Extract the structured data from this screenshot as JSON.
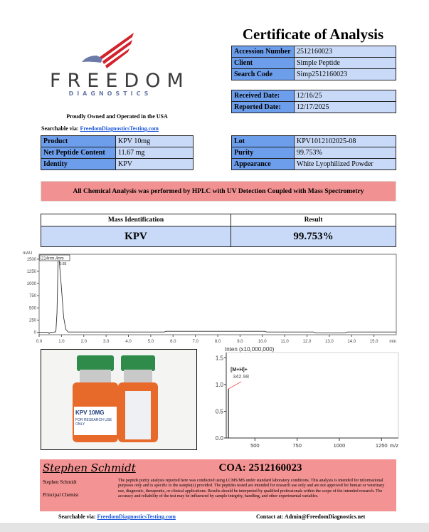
{
  "title": "Certificate of Analysis",
  "logo": {
    "name": "FREEDOM",
    "sub": "DIAGNOSTICS",
    "colors": {
      "red": "#d3222a",
      "blue": "#6b7aa8"
    }
  },
  "tagline": "Proudly Owned and Operated in the USA",
  "searchable": {
    "label": "Searchable via:",
    "link": "FreedomDiagnosticsTesting.com"
  },
  "info": [
    {
      "label": "Accession Number",
      "value": "2512160023"
    },
    {
      "label": "Client",
      "value": "Simple Peptide"
    },
    {
      "label": "Search Code",
      "value": "Simp2512160023"
    }
  ],
  "dates": [
    {
      "label": "Received Date:",
      "value": "12/16/25"
    },
    {
      "label": "Reported Date:",
      "value": "12/17/2025"
    }
  ],
  "product": [
    {
      "label": "Product",
      "value": "KPV 10mg"
    },
    {
      "label": "Net Peptide Content",
      "value": "11.67 mg"
    },
    {
      "label": "Identity",
      "value": "KPV"
    }
  ],
  "lot": [
    {
      "label": "Lot",
      "value": "KPV1012102025-08"
    },
    {
      "label": "Purity",
      "value": "99.753%"
    },
    {
      "label": "Appearance",
      "value": "White Lyophilized Powder"
    }
  ],
  "banner": "All Chemical Analysis was performed by HPLC with UV Detection Coupled with Mass Spectrometry",
  "mass": {
    "headers": [
      "Mass Identification",
      "Result"
    ],
    "identity": "KPV",
    "result": "99.753%"
  },
  "photo": {
    "vial_label": "KPV 10MG",
    "vial_sub": "FOR RESEARCH USE ONLY"
  },
  "chart_data": [
    {
      "type": "line",
      "ylabel": "mAU",
      "xlabel": "min",
      "legend": "214nm,4nm",
      "xlim": [
        0,
        16
      ],
      "ylim": [
        -50,
        1600
      ],
      "xticks": [
        "0.0",
        "1.0",
        "2.0",
        "3.0",
        "4.0",
        "5.0",
        "6.0",
        "7.0",
        "8.0",
        "9.0",
        "10.0",
        "11.0",
        "12.0",
        "13.0",
        "14.0",
        "15.0"
      ],
      "yticks": [
        "0",
        "250",
        "500",
        "750",
        "1000",
        "1250",
        "1500"
      ],
      "x": [
        0,
        0.4,
        0.45,
        0.5,
        0.6,
        0.75,
        0.8,
        0.85,
        0.9,
        1.0,
        1.1,
        1.2,
        1.3,
        5.6,
        5.7,
        10.1,
        10.2,
        12.3,
        12.4,
        13.7,
        13.8,
        16
      ],
      "y": [
        0,
        0,
        -25,
        0,
        0,
        10,
        400,
        1500,
        1480,
        900,
        300,
        60,
        5,
        5,
        20,
        20,
        5,
        5,
        -10,
        -10,
        5,
        5
      ],
      "peak_label": "0.85"
    },
    {
      "type": "bar",
      "title": "Inten (x10,000,000)",
      "xlabel": "m/z",
      "xlim": [
        330,
        1350
      ],
      "ylim": [
        0,
        1.6
      ],
      "xticks": [
        "500",
        "750",
        "1000",
        "1250"
      ],
      "yticks": [
        "0.0",
        "0.5",
        "1.0",
        "1.5"
      ],
      "peaks": [
        {
          "x": 342.98,
          "y": 0.92
        }
      ],
      "annotation": "[M+H]+",
      "peak_label": "342.98"
    }
  ],
  "footer": {
    "signature": "Stephen Schmidt",
    "coa": "COA: 2512160023",
    "name": "Stephen Schmidt",
    "role": "Principal Chemist",
    "disclaimer": "The peptide purity analysis reported here was conducted using LCMS/MS under standard laboratory conditions. This analysis is intended for informational purposes only and is specific to the sample(s) provided. The peptides tested are intended for research use only and are not approved for human or veterinary use, diagnostic, therapeutic, or clinical applications. Results should be interpreted by qualified professionals within the scope of the intended research. The accuracy and reliability of the test may be influenced by sample integrity, handling, and other experimental variables.",
    "search_label": "Searchable via:",
    "search_link": "FreedomDiagnosticsTesting.com",
    "contact": "Contact at: Admin@FreedomDiagnostics.net"
  }
}
